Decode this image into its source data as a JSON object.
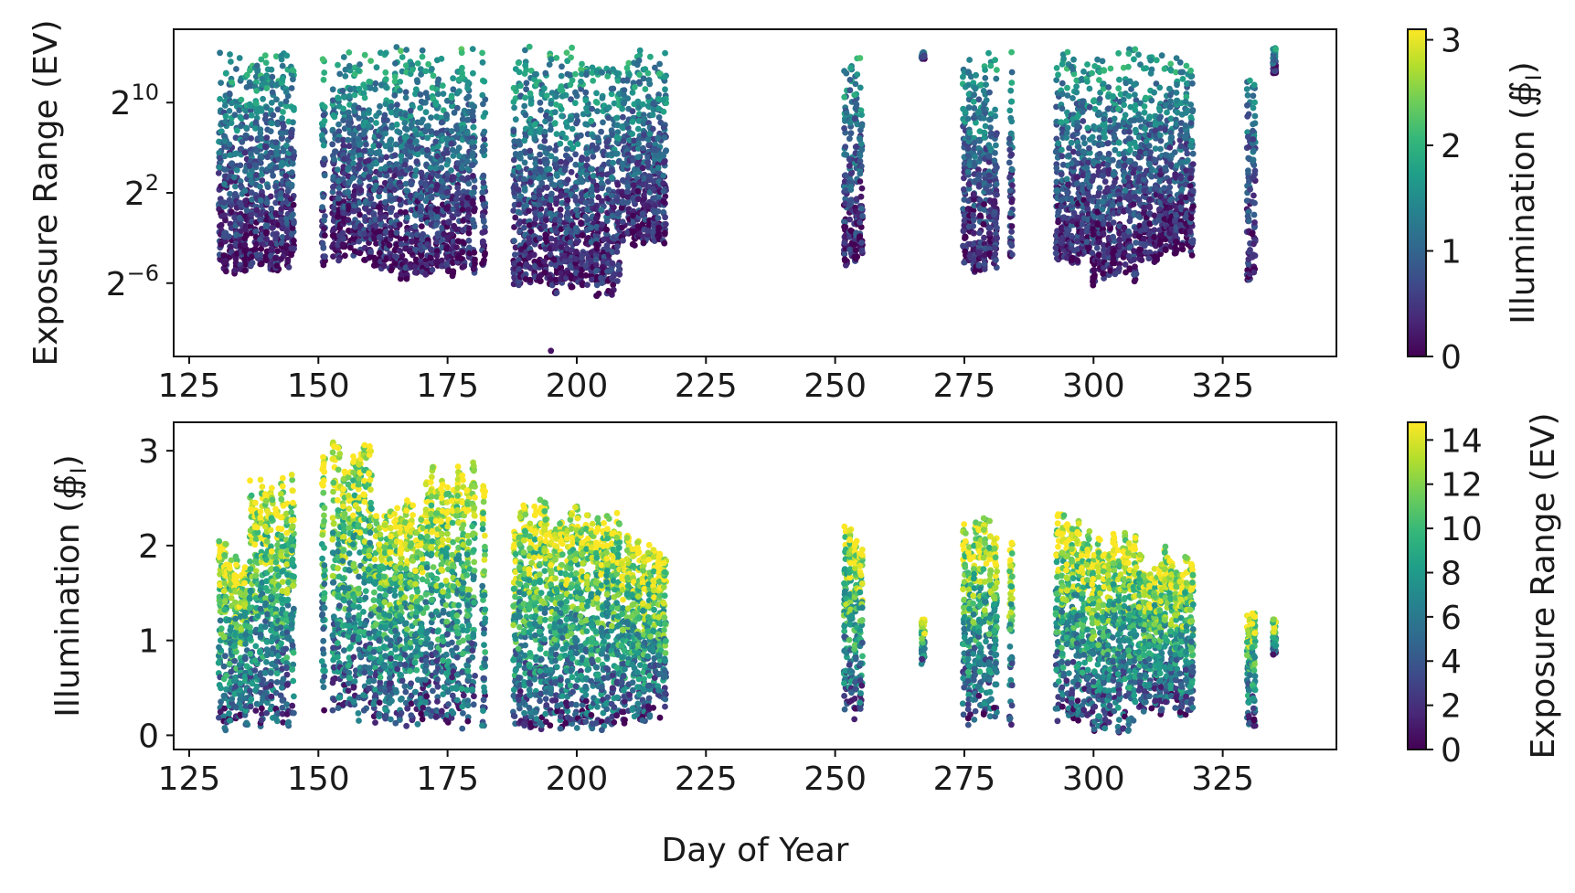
{
  "chart_data": [
    {
      "type": "scatter",
      "xlabel": "",
      "ylabel": "Exposure Range (EV)",
      "y_scale": "log2",
      "xlim": [
        122,
        347
      ],
      "ylim_log2": [
        -12.5,
        16.5
      ],
      "xticks": [
        125,
        150,
        175,
        200,
        225,
        250,
        275,
        300,
        325
      ],
      "yticks": [
        {
          "base": "2",
          "exp": "10",
          "value_log2": 10
        },
        {
          "base": "2",
          "exp": "2",
          "value_log2": 2
        },
        {
          "base": "2",
          "exp": "−6",
          "value_log2": -6
        }
      ],
      "color_variable": "Illumination",
      "colormap": "viridis",
      "colorbar": {
        "label": "Illumination (∯",
        "label_sub": "I",
        "label_close": ")",
        "range": [
          0,
          3.1
        ],
        "ticks": [
          0,
          1,
          2,
          3
        ]
      },
      "day_groups": [
        {
          "days": [
            131,
            132,
            133,
            134,
            135,
            136
          ],
          "log2_range": [
            -5.5,
            15
          ]
        },
        {
          "days": [
            137,
            138,
            139,
            140,
            141,
            142,
            143,
            144,
            145
          ],
          "log2_range": [
            -5,
            15
          ]
        },
        {
          "days": [
            151,
            153,
            154,
            155,
            156,
            157,
            158,
            159,
            160
          ],
          "log2_range": [
            -4.5,
            15
          ]
        },
        {
          "days": [
            161,
            162,
            163,
            164,
            165,
            166,
            167,
            168,
            169,
            170
          ],
          "log2_range": [
            -6,
            15
          ]
        },
        {
          "days": [
            171,
            172,
            173,
            174,
            175,
            176,
            177,
            178,
            179,
            180,
            182
          ],
          "log2_range": [
            -5.5,
            15
          ]
        },
        {
          "days": [
            188,
            189,
            190,
            191,
            192,
            193,
            194,
            195,
            196,
            197,
            198
          ],
          "log2_range": [
            -7,
            15
          ]
        },
        {
          "days": [
            199,
            200,
            201,
            202,
            203,
            204,
            205,
            206,
            207,
            208
          ],
          "log2_range": [
            -7.5,
            15
          ]
        },
        {
          "days": [
            209,
            210,
            211,
            212,
            213,
            214,
            215,
            216,
            217
          ],
          "log2_range": [
            -3,
            15
          ]
        },
        {
          "days": [
            252,
            253,
            254,
            255
          ],
          "log2_range": [
            -4.5,
            15
          ]
        },
        {
          "days": [
            267
          ],
          "log2_range": [
            12.5,
            14.5
          ]
        },
        {
          "days": [
            275,
            276,
            277,
            278,
            279,
            280,
            281
          ],
          "log2_range": [
            -5.5,
            15
          ]
        },
        {
          "days": [
            284
          ],
          "log2_range": [
            -4,
            15
          ]
        },
        {
          "days": [
            293,
            294,
            295,
            296,
            297,
            298,
            299
          ],
          "log2_range": [
            -4.5,
            15
          ]
        },
        {
          "days": [
            300,
            301,
            302,
            303,
            304,
            305,
            306,
            307,
            308
          ],
          "log2_range": [
            -6.5,
            15
          ]
        },
        {
          "days": [
            309,
            310,
            311,
            312,
            313,
            314,
            315,
            316,
            317,
            318,
            319
          ],
          "log2_range": [
            -4.5,
            15
          ]
        },
        {
          "days": [
            330,
            331
          ],
          "log2_range": [
            -6.5,
            15
          ]
        },
        {
          "days": [
            335
          ],
          "log2_range": [
            12,
            15
          ]
        }
      ],
      "outliers": [
        {
          "x": 195,
          "log2_y": -12
        }
      ]
    },
    {
      "type": "scatter",
      "xlabel": "Day of Year",
      "ylabel": "Illumination (∯",
      "ylabel_sub": "I",
      "ylabel_close": ")",
      "xlim": [
        122,
        347
      ],
      "ylim": [
        -0.15,
        3.3
      ],
      "xticks": [
        125,
        150,
        175,
        200,
        225,
        250,
        275,
        300,
        325
      ],
      "yticks": [
        0,
        1,
        2,
        3
      ],
      "color_variable": "Exposure Range (EV)",
      "colormap": "viridis",
      "colorbar": {
        "label": "Exposure Range (EV)",
        "range": [
          0,
          14.8
        ],
        "ticks": [
          0,
          2,
          4,
          6,
          8,
          10,
          12,
          14
        ]
      },
      "day_groups": [
        {
          "days": [
            131,
            132,
            133,
            134,
            135,
            136
          ],
          "illum_range": [
            0.05,
            2.1
          ]
        },
        {
          "days": [
            137,
            138,
            139,
            140,
            141,
            142,
            143,
            144,
            145
          ],
          "illum_range": [
            0.05,
            2.8
          ]
        },
        {
          "days": [
            151,
            153,
            154,
            155,
            156,
            157,
            158,
            159,
            160
          ],
          "illum_range": [
            0.1,
            3.1
          ]
        },
        {
          "days": [
            161,
            162,
            163,
            164,
            165,
            166,
            167,
            168,
            169,
            170
          ],
          "illum_range": [
            0.05,
            2.5
          ]
        },
        {
          "days": [
            171,
            172,
            173,
            174,
            175,
            176,
            177,
            178,
            179,
            180,
            182
          ],
          "illum_range": [
            0.05,
            2.9
          ]
        },
        {
          "days": [
            188,
            189,
            190,
            191,
            192,
            193,
            194,
            195,
            196,
            197,
            198
          ],
          "illum_range": [
            0.0,
            2.5
          ]
        },
        {
          "days": [
            199,
            200,
            201,
            202,
            203,
            204,
            205,
            206,
            207,
            208
          ],
          "illum_range": [
            0.0,
            2.5
          ]
        },
        {
          "days": [
            209,
            210,
            211,
            212,
            213,
            214,
            215,
            216,
            217
          ],
          "illum_range": [
            0.1,
            2.2
          ]
        },
        {
          "days": [
            252,
            253,
            254,
            255
          ],
          "illum_range": [
            0.15,
            2.25
          ]
        },
        {
          "days": [
            267
          ],
          "illum_range": [
            0.7,
            1.35
          ]
        },
        {
          "days": [
            275,
            276,
            277,
            278,
            279,
            280,
            281
          ],
          "illum_range": [
            0.1,
            2.35
          ]
        },
        {
          "days": [
            284
          ],
          "illum_range": [
            0.1,
            2.2
          ]
        },
        {
          "days": [
            293,
            294,
            295,
            296,
            297,
            298,
            299
          ],
          "illum_range": [
            0.1,
            2.4
          ]
        },
        {
          "days": [
            300,
            301,
            302,
            303,
            304,
            305,
            306,
            307,
            308
          ],
          "illum_range": [
            0.0,
            2.2
          ]
        },
        {
          "days": [
            309,
            310,
            311,
            312,
            313,
            314,
            315,
            316,
            317,
            318,
            319
          ],
          "illum_range": [
            0.2,
            2.05
          ]
        },
        {
          "days": [
            330,
            331
          ],
          "illum_range": [
            0.05,
            1.5
          ]
        },
        {
          "days": [
            335
          ],
          "illum_range": [
            0.8,
            1.55
          ]
        }
      ]
    }
  ]
}
